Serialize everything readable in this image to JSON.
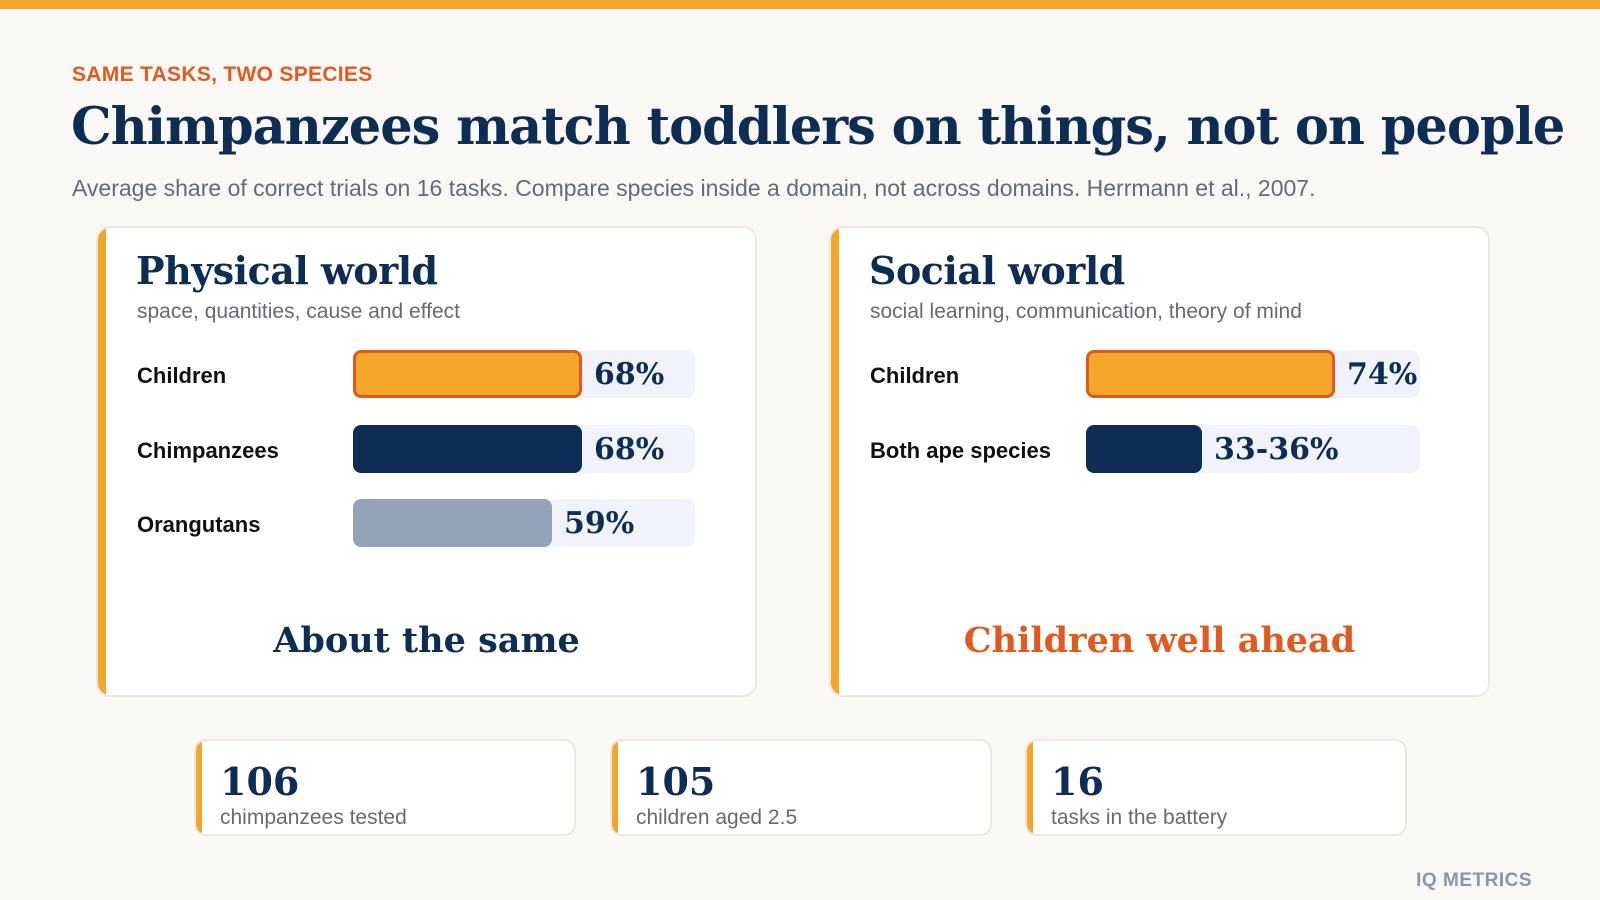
{
  "header": {
    "kicker": "SAME TASKS, TWO SPECIES",
    "title": "Chimpanzees match toddlers on things, not on people",
    "subtitle": "Average share of correct trials on 16 tasks. Compare species inside a domain, not across domains. Herrmann et al., 2007."
  },
  "colors": {
    "accent": "#f4a62a",
    "highlight": "#e05a1f",
    "navy": "#0e2d55",
    "muted": "#93a3b8"
  },
  "chart_data": [
    {
      "type": "bar",
      "orientation": "horizontal",
      "title": "Physical world",
      "subtitle": "space, quantities, cause and effect",
      "categories": [
        "Children",
        "Chimpanzees",
        "Orangutans"
      ],
      "values": [
        68,
        68,
        59
      ],
      "value_labels": [
        "68%",
        "68%",
        "59%"
      ],
      "xlim": [
        0,
        100
      ],
      "grid": false,
      "verdict": "About the same"
    },
    {
      "type": "bar",
      "orientation": "horizontal",
      "title": "Social world",
      "subtitle": "social learning, communication, theory of mind",
      "categories": [
        "Children",
        "Both ape species"
      ],
      "values": [
        74,
        34.5
      ],
      "value_labels": [
        "74%",
        "33-36%"
      ],
      "xlim": [
        0,
        100
      ],
      "grid": false,
      "verdict": "Children well ahead"
    }
  ],
  "stats": [
    {
      "number": "106",
      "label": "chimpanzees tested"
    },
    {
      "number": "105",
      "label": "children aged 2.5"
    },
    {
      "number": "16",
      "label": "tasks in the battery"
    }
  ],
  "brand": "IQ METRICS"
}
